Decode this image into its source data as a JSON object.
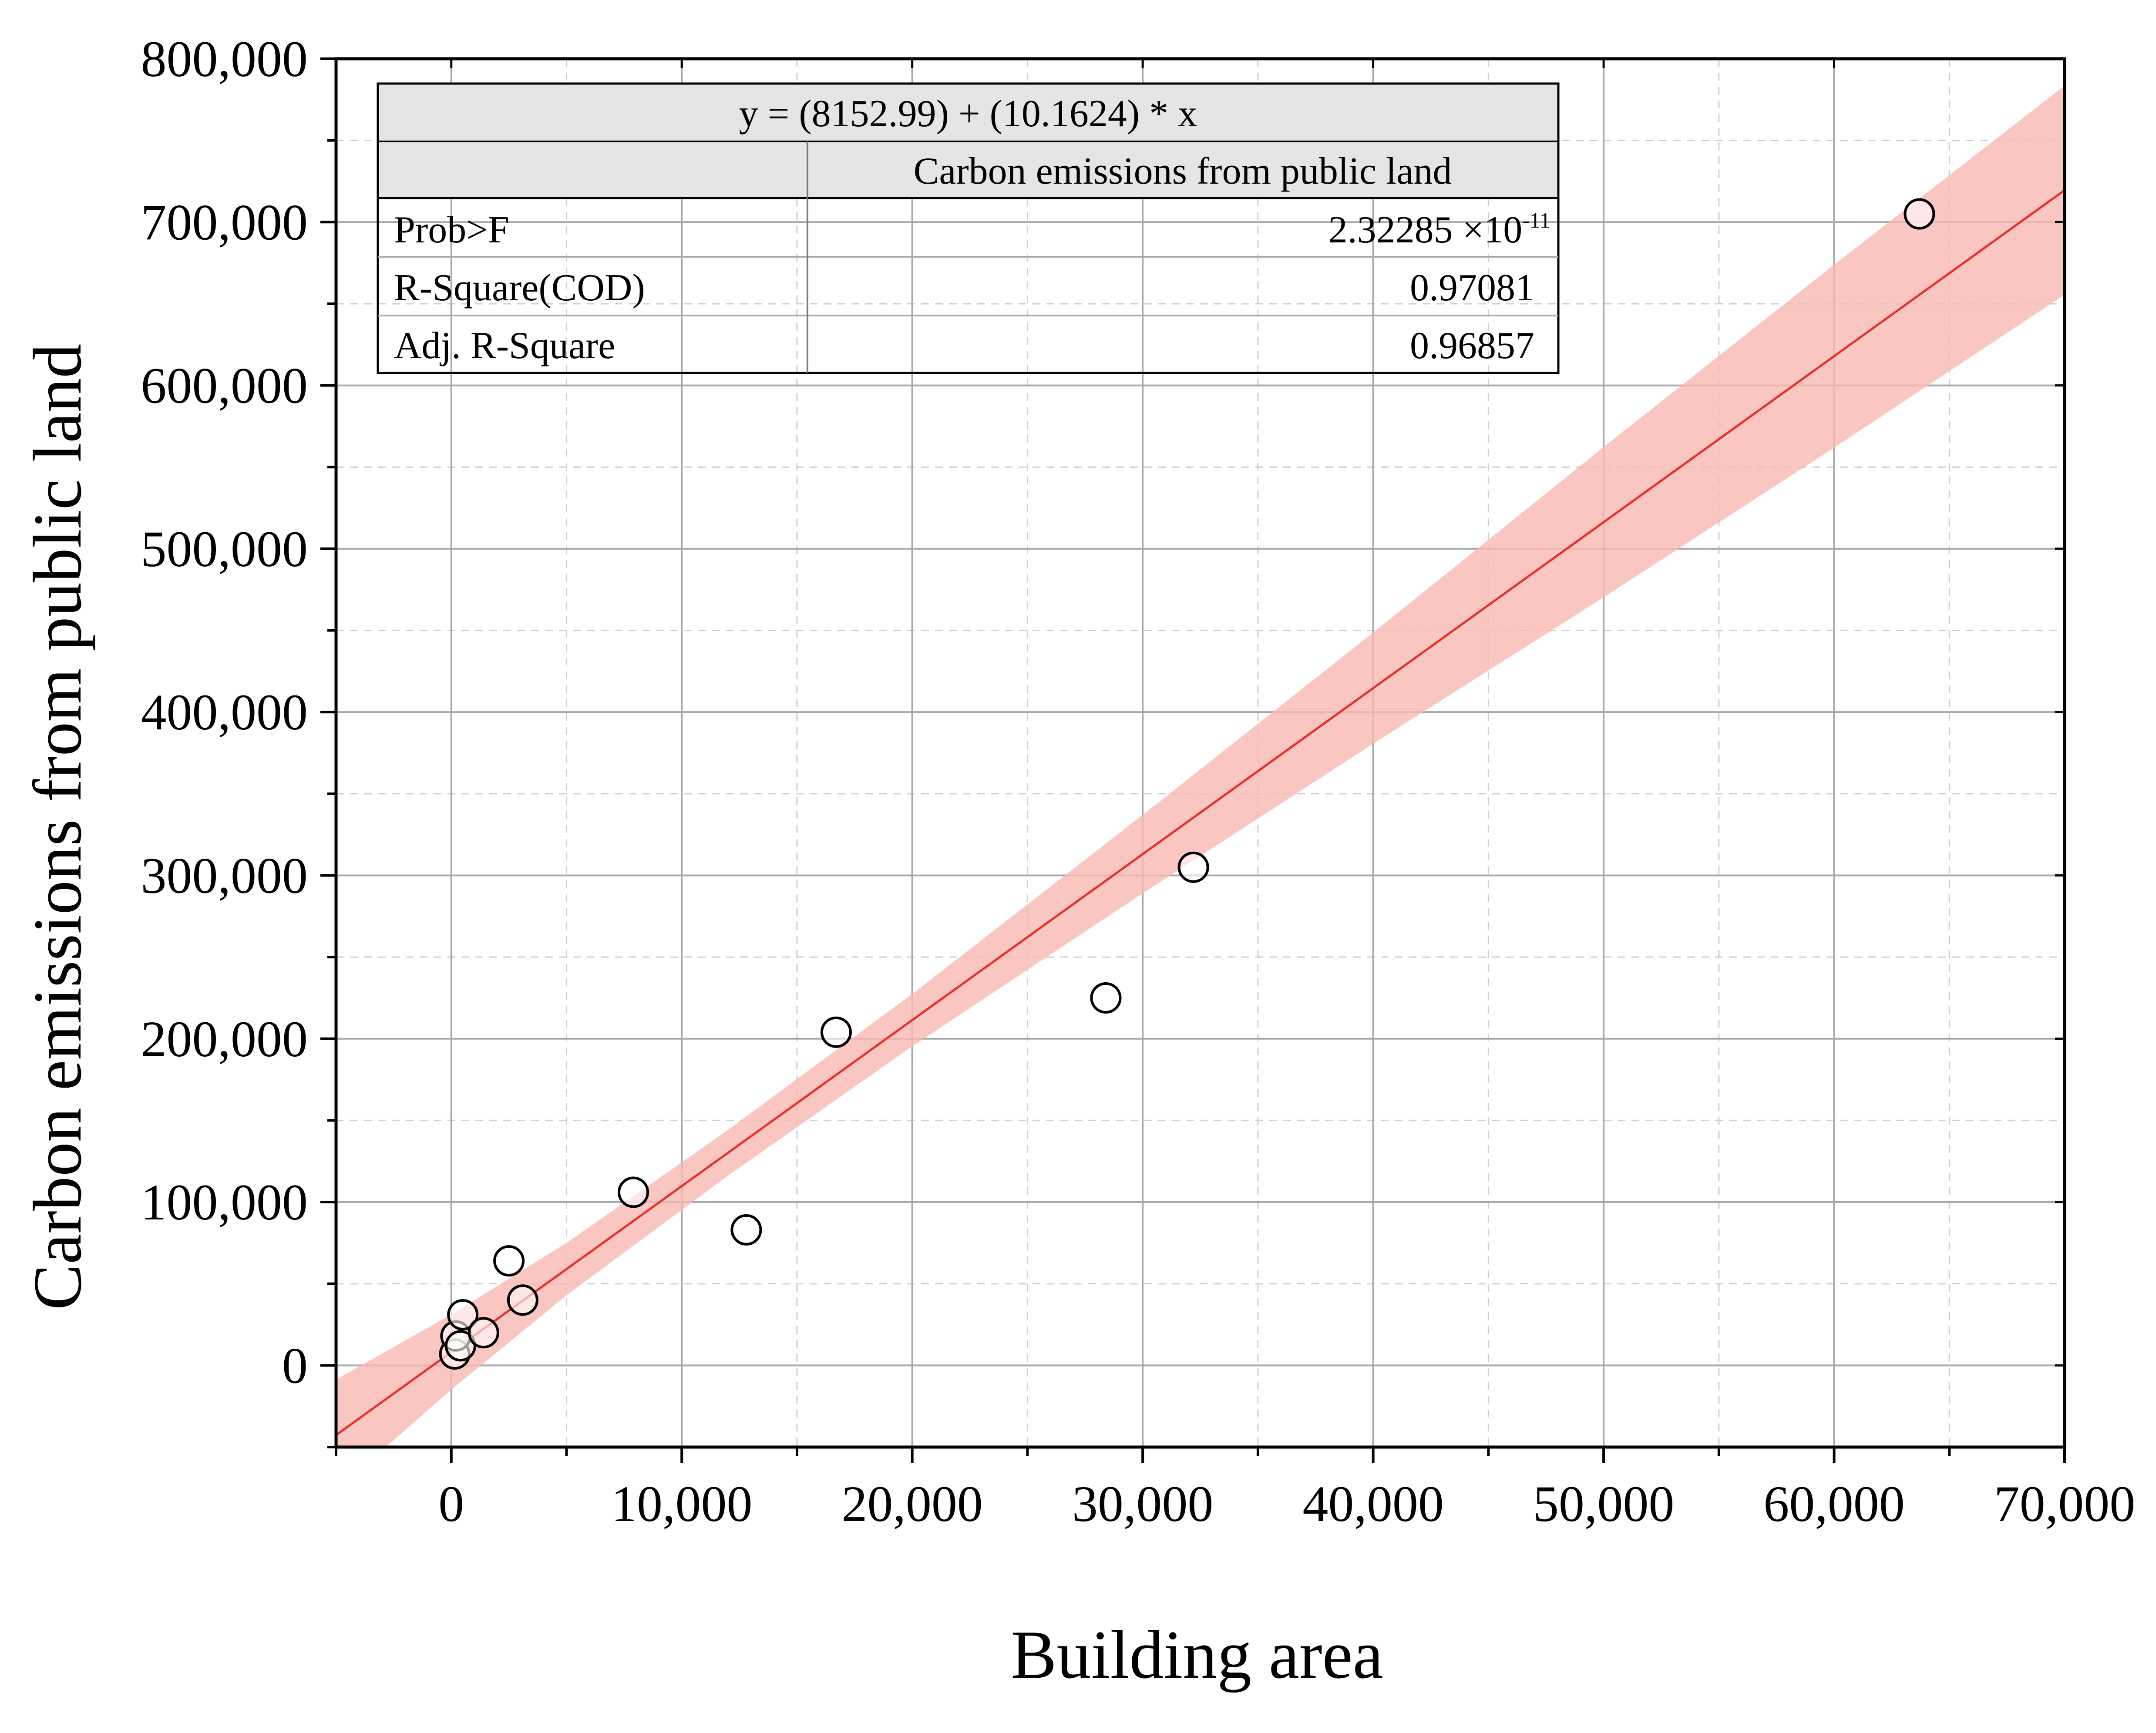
{
  "chart_data": {
    "type": "scatter",
    "title": "",
    "xlabel": "Building area",
    "ylabel": "Carbon emissions from public land",
    "xlim": [
      -5000,
      70000
    ],
    "ylim": [
      -50000,
      800000
    ],
    "x_ticks": [
      "0",
      "10,000",
      "20,000",
      "30,000",
      "40,000",
      "50,000",
      "60,000",
      "70,000"
    ],
    "x_tick_values": [
      0,
      10000,
      20000,
      30000,
      40000,
      50000,
      60000,
      70000
    ],
    "y_ticks": [
      "0",
      "100,000",
      "200,000",
      "300,000",
      "400,000",
      "500,000",
      "600,000",
      "700,000",
      "800,000"
    ],
    "y_tick_values": [
      0,
      100000,
      200000,
      300000,
      400000,
      500000,
      600000,
      700000,
      800000
    ],
    "grid": true,
    "series": [
      {
        "points": [
          {
            "x": 150,
            "y": 7000
          },
          {
            "x": 200,
            "y": 18000
          },
          {
            "x": 400,
            "y": 12000
          },
          {
            "x": 500,
            "y": 31000
          },
          {
            "x": 1400,
            "y": 20000
          },
          {
            "x": 2500,
            "y": 64000
          },
          {
            "x": 3100,
            "y": 40000
          },
          {
            "x": 7900,
            "y": 106000
          },
          {
            "x": 12800,
            "y": 83000
          },
          {
            "x": 16700,
            "y": 204000
          },
          {
            "x": 28400,
            "y": 225000
          },
          {
            "x": 32200,
            "y": 305000
          },
          {
            "x": 63700,
            "y": 705000
          }
        ],
        "marker": "open-circle",
        "color": "#000000"
      }
    ],
    "fit": {
      "intercept": 8152.99,
      "slope": 10.1624,
      "line_color": "#e8302a",
      "band_color": "#f8b8b2",
      "band_halfwidth_at_x": [
        {
          "x": -5000,
          "half": 34000
        },
        {
          "x": 0,
          "half": 23000
        },
        {
          "x": 5000,
          "half": 16000
        },
        {
          "x": 12000,
          "half": 14000
        },
        {
          "x": 20000,
          "half": 16000
        },
        {
          "x": 30000,
          "half": 24000
        },
        {
          "x": 40000,
          "half": 34000
        },
        {
          "x": 50000,
          "half": 46000
        },
        {
          "x": 60000,
          "half": 56000
        },
        {
          "x": 70000,
          "half": 64000
        }
      ]
    }
  },
  "stats_table": {
    "equation": "y = (8152.99) + (10.1624) * x",
    "column_header": "Carbon emissions from public land",
    "rows": [
      {
        "label": "Prob>F",
        "value_base": "2.32285 ×10",
        "value_exp": "-11"
      },
      {
        "label": "R-Square(COD)",
        "value": "0.97081"
      },
      {
        "label": "Adj. R-Square",
        "value": "0.96857"
      }
    ]
  }
}
